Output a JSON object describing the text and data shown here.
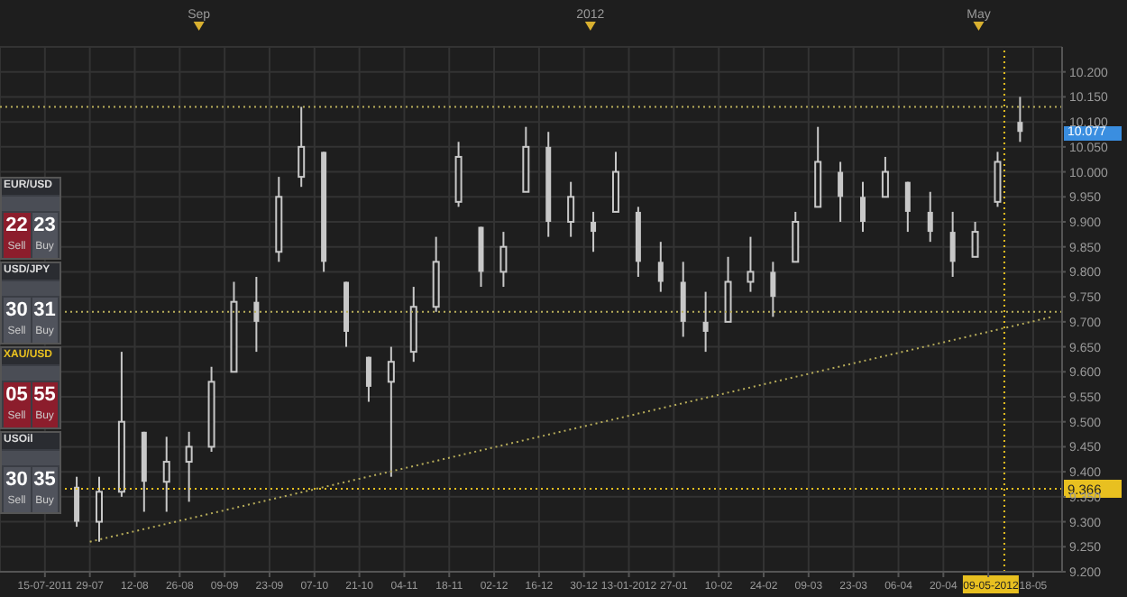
{
  "chart_data": {
    "type": "candlestick",
    "color": "#c8c8c8",
    "x": [
      "2011-07-25",
      "2011-08-01",
      "2011-08-08",
      "2011-08-15",
      "2011-08-22",
      "2011-08-29",
      "2011-09-05",
      "2011-09-12",
      "2011-09-19",
      "2011-09-26",
      "2011-10-03",
      "2011-10-10",
      "2011-10-17",
      "2011-10-24",
      "2011-10-31",
      "2011-11-07",
      "2011-11-14",
      "2011-11-21",
      "2011-11-28",
      "2011-12-05",
      "2011-12-12",
      "2011-12-19",
      "2011-12-26",
      "2012-01-02",
      "2012-01-09",
      "2012-01-16",
      "2012-01-23",
      "2012-01-30",
      "2012-02-06",
      "2012-02-13",
      "2012-02-20",
      "2012-02-27",
      "2012-03-05",
      "2012-03-12",
      "2012-03-19",
      "2012-03-26",
      "2012-04-02",
      "2012-04-09",
      "2012-04-16",
      "2012-04-23",
      "2012-04-30",
      "2012-05-07",
      "2012-05-14"
    ],
    "ohlc": [
      [
        9.37,
        9.39,
        9.29,
        9.3
      ],
      [
        9.3,
        9.39,
        9.26,
        9.36
      ],
      [
        9.36,
        9.64,
        9.35,
        9.5
      ],
      [
        9.48,
        9.48,
        9.32,
        9.38
      ],
      [
        9.38,
        9.47,
        9.32,
        9.42
      ],
      [
        9.42,
        9.48,
        9.34,
        9.45
      ],
      [
        9.45,
        9.61,
        9.44,
        9.58
      ],
      [
        9.6,
        9.78,
        9.6,
        9.74
      ],
      [
        9.74,
        9.79,
        9.64,
        9.7
      ],
      [
        9.84,
        9.99,
        9.82,
        9.95
      ],
      [
        9.99,
        10.13,
        9.97,
        10.05
      ],
      [
        10.04,
        10.04,
        9.8,
        9.82
      ],
      [
        9.78,
        9.78,
        9.65,
        9.68
      ],
      [
        9.63,
        9.63,
        9.54,
        9.57
      ],
      [
        9.58,
        9.65,
        9.39,
        9.62
      ],
      [
        9.64,
        9.77,
        9.62,
        9.73
      ],
      [
        9.73,
        9.87,
        9.72,
        9.82
      ],
      [
        9.94,
        10.06,
        9.93,
        10.03
      ],
      [
        9.89,
        9.89,
        9.77,
        9.8
      ],
      [
        9.8,
        9.88,
        9.77,
        9.85
      ],
      [
        9.96,
        10.09,
        9.96,
        10.05
      ],
      [
        10.05,
        10.08,
        9.87,
        9.9
      ],
      [
        9.9,
        9.98,
        9.87,
        9.95
      ],
      [
        9.9,
        9.92,
        9.84,
        9.88
      ],
      [
        9.92,
        10.04,
        9.92,
        10.0
      ],
      [
        9.92,
        9.93,
        9.79,
        9.82
      ],
      [
        9.82,
        9.86,
        9.76,
        9.78
      ],
      [
        9.78,
        9.82,
        9.67,
        9.7
      ],
      [
        9.7,
        9.76,
        9.64,
        9.68
      ],
      [
        9.7,
        9.83,
        9.7,
        9.78
      ],
      [
        9.78,
        9.87,
        9.76,
        9.8
      ],
      [
        9.8,
        9.82,
        9.71,
        9.75
      ],
      [
        9.82,
        9.92,
        9.82,
        9.9
      ],
      [
        9.93,
        10.09,
        9.93,
        10.02
      ],
      [
        10.0,
        10.02,
        9.9,
        9.95
      ],
      [
        9.95,
        9.98,
        9.88,
        9.9
      ],
      [
        9.95,
        10.03,
        9.95,
        10.0
      ],
      [
        9.98,
        9.98,
        9.88,
        9.92
      ],
      [
        9.92,
        9.96,
        9.86,
        9.88
      ],
      [
        9.88,
        9.92,
        9.79,
        9.82
      ],
      [
        9.83,
        9.9,
        9.83,
        9.88
      ],
      [
        9.94,
        10.04,
        9.93,
        10.02
      ],
      [
        10.1,
        10.15,
        10.06,
        10.08
      ]
    ],
    "series": [
      {
        "type": "line",
        "x": [
          "2011-07-29",
          "2012-05-24"
        ],
        "values": [
          9.26,
          9.71
        ],
        "color": "#b8ad5a",
        "line_style": "dotted"
      }
    ],
    "xlim": [
      "2011-07-01",
      "2012-05-27"
    ],
    "xticks": [
      {
        "value": "2011-07-15",
        "label": "15-07-2011"
      },
      {
        "value": "2011-07-29",
        "label": "29-07"
      },
      {
        "value": "2011-08-12",
        "label": "12-08"
      },
      {
        "value": "2011-08-26",
        "label": "26-08"
      },
      {
        "value": "2011-09-09",
        "label": "09-09"
      },
      {
        "value": "2011-09-23",
        "label": "23-09"
      },
      {
        "value": "2011-10-07",
        "label": "07-10"
      },
      {
        "value": "2011-10-21",
        "label": "21-10"
      },
      {
        "value": "2011-11-04",
        "label": "04-11"
      },
      {
        "value": "2011-11-18",
        "label": "18-11"
      },
      {
        "value": "2011-12-02",
        "label": "02-12"
      },
      {
        "value": "2011-12-16",
        "label": "16-12"
      },
      {
        "value": "2011-12-30",
        "label": "30-12"
      },
      {
        "value": "2012-01-13",
        "label": "13-01-2012"
      },
      {
        "value": "2012-01-27",
        "label": "27-01"
      },
      {
        "value": "2012-02-10",
        "label": "10-02"
      },
      {
        "value": "2012-02-24",
        "label": "24-02"
      },
      {
        "value": "2012-03-09",
        "label": "09-03"
      },
      {
        "value": "2012-03-23",
        "label": "23-03"
      },
      {
        "value": "2012-04-06",
        "label": "06-04"
      },
      {
        "value": "2012-04-20",
        "label": "20-04"
      },
      {
        "value": "2012-05-04",
        "label": null
      },
      {
        "value": "2012-05-18",
        "label": "18-05"
      }
    ],
    "x2lim": [
      "2011-07-01",
      "2012-05-27"
    ],
    "x2ticks": [
      {
        "value": "2011-09-01",
        "label": "Sep"
      },
      {
        "value": "2012-01-01",
        "label": "2012"
      },
      {
        "value": "2012-05-01",
        "label": "May"
      }
    ],
    "ylim": [
      9.2,
      10.25
    ],
    "yticks": [
      {
        "value": 9.2,
        "label": "9.200"
      },
      {
        "value": 9.25,
        "label": "9.250"
      },
      {
        "value": 9.3,
        "label": "9.300"
      },
      {
        "value": 9.35,
        "label": "9.350"
      },
      {
        "value": 9.4,
        "label": "9.400"
      },
      {
        "value": 9.45,
        "label": "9.450"
      },
      {
        "value": 9.5,
        "label": "9.500"
      },
      {
        "value": 9.55,
        "label": "9.550"
      },
      {
        "value": 9.6,
        "label": "9.600"
      },
      {
        "value": 9.65,
        "label": "9.650"
      },
      {
        "value": 9.7,
        "label": "9.700"
      },
      {
        "value": 9.75,
        "label": "9.750"
      },
      {
        "value": 9.8,
        "label": "9.800"
      },
      {
        "value": 9.85,
        "label": "9.850"
      },
      {
        "value": 9.9,
        "label": "9.900"
      },
      {
        "value": 9.95,
        "label": "9.950"
      },
      {
        "value": 10.0,
        "label": "10.000"
      },
      {
        "value": 10.05,
        "label": "10.050"
      },
      {
        "value": 10.1,
        "label": "10.100"
      },
      {
        "value": 10.15,
        "label": "10.150"
      },
      {
        "value": 10.2,
        "label": "10.200"
      }
    ],
    "grid": true,
    "ref_lines": [
      {
        "axis": "y",
        "value": 10.13,
        "color": "#b8ad5a",
        "line_style": "dotted"
      },
      {
        "axis": "y",
        "value": 9.72,
        "color": "#b8ad5a",
        "line_style": "dotted"
      },
      {
        "axis": "y",
        "value": 9.366,
        "label": "9.366",
        "color": "#e8c020",
        "line_style": "dotted"
      },
      {
        "axis": "x",
        "value": "2012-05-09",
        "label": "09-05-2012",
        "color": "#e8c020",
        "line_style": "dotted"
      }
    ],
    "annotations": [
      "EUR/USD",
      "22",
      "23",
      "Sell",
      "Buy",
      "USD/JPY",
      "30",
      "31",
      "Sell",
      "Buy",
      "XAU/USD",
      "05",
      "55",
      "Sell",
      "Buy",
      "USOil",
      "30",
      "35",
      "Sell",
      "Buy",
      "10.077"
    ]
  }
}
